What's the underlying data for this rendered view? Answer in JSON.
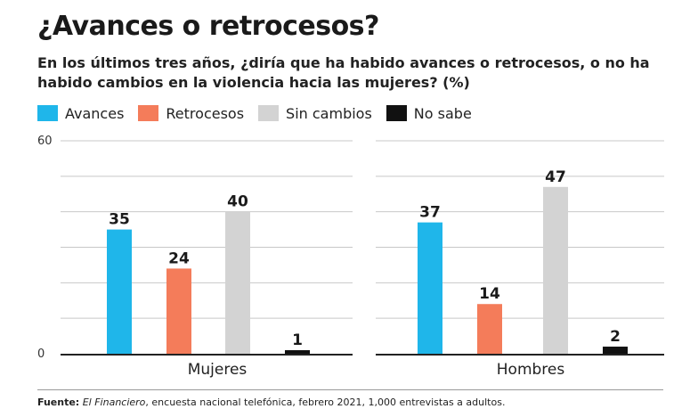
{
  "title": "¿Avances o retrocesos?",
  "subtitle": "En los últimos tres años, ¿diría que ha habido avances o retrocesos, o no ha habido cambios en la violencia hacia las mujeres? (%)",
  "legend": [
    {
      "label": "Avances",
      "color": "#1fb6ea"
    },
    {
      "label": "Retrocesos",
      "color": "#f47c5a"
    },
    {
      "label": "Sin cambios",
      "color": "#d3d3d3"
    },
    {
      "label": "No sabe",
      "color": "#111111"
    }
  ],
  "chart_data": {
    "type": "bar",
    "categories": [
      "Mujeres",
      "Hombres"
    ],
    "series": [
      {
        "name": "Avances",
        "values": [
          35,
          37
        ],
        "color": "#1fb6ea"
      },
      {
        "name": "Retrocesos",
        "values": [
          24,
          14
        ],
        "color": "#f47c5a"
      },
      {
        "name": "Sin cambios",
        "values": [
          40,
          47
        ],
        "color": "#d3d3d3"
      },
      {
        "name": "No sabe",
        "values": [
          1,
          2
        ],
        "color": "#111111"
      }
    ],
    "ylim": [
      0,
      60
    ],
    "yticks": [
      "60",
      "0"
    ],
    "grid": true,
    "legend_position": "top-left"
  },
  "source": {
    "label": "Fuente:",
    "publication": "El Financiero",
    "text": ", encuesta nacional telefónica, febrero 2021, 1,000 entrevistas a adultos."
  }
}
